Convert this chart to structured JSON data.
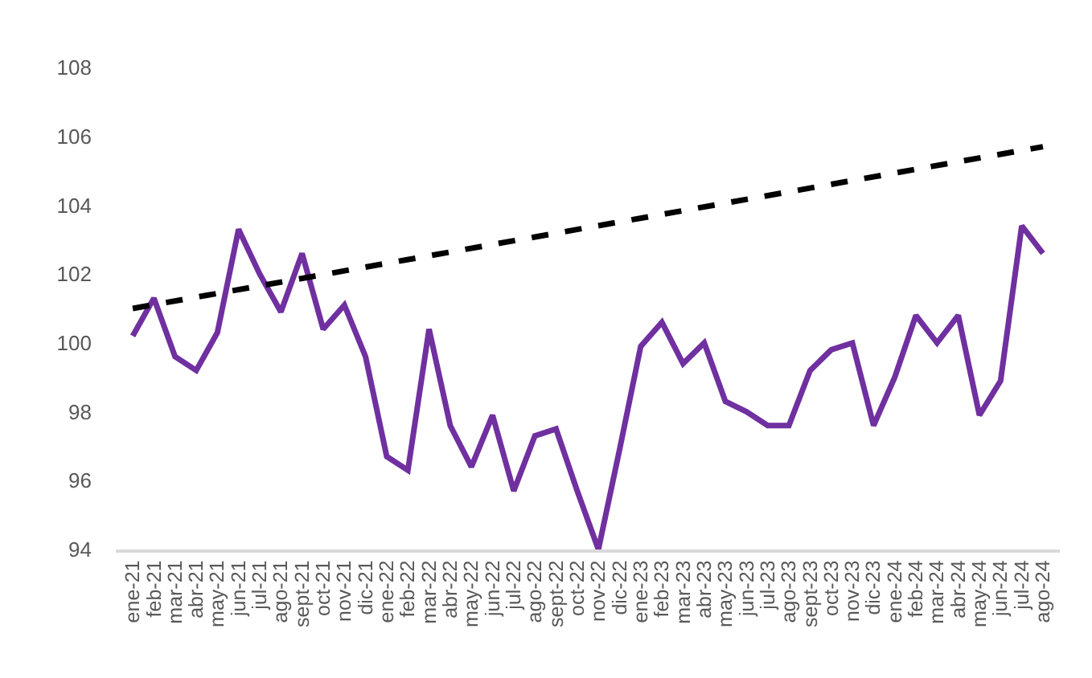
{
  "chart_data": {
    "type": "line",
    "categories": [
      "ene-21",
      "feb-21",
      "mar-21",
      "abr-21",
      "may-21",
      "jun-21",
      "jul-21",
      "ago-21",
      "sept-21",
      "oct-21",
      "nov-21",
      "dic-21",
      "ene-22",
      "feb-22",
      "mar-22",
      "abr-22",
      "may-22",
      "jun-22",
      "jul-22",
      "ago-22",
      "sept-22",
      "oct-22",
      "nov-22",
      "dic-22",
      "ene-23",
      "feb-23",
      "mar-23",
      "abr-23",
      "may-23",
      "jun-23",
      "jul-23",
      "ago-23",
      "sept-23",
      "oct-23",
      "nov-23",
      "dic-23",
      "ene-24",
      "feb-24",
      "mar-24",
      "abr-24",
      "may-24",
      "jun-24",
      "jul-24",
      "ago-24"
    ],
    "series": [
      {
        "color": "#7030a0",
        "line_style": "solid",
        "values": [
          100.2,
          101.3,
          99.6,
          99.2,
          100.3,
          103.3,
          102.0,
          100.9,
          102.6,
          100.4,
          101.1,
          99.6,
          96.7,
          96.3,
          100.4,
          97.6,
          96.4,
          97.9,
          95.7,
          97.3,
          97.5,
          95.7,
          94.0,
          96.9,
          99.9,
          100.6,
          99.4,
          100.0,
          98.3,
          98.0,
          97.6,
          97.6,
          99.2,
          99.8,
          100.0,
          97.6,
          99.0,
          100.8,
          100.0,
          100.8,
          97.9,
          98.9,
          103.4,
          102.6
        ]
      },
      {
        "type": "line",
        "color": "#000000",
        "line_style": "dashed",
        "x": [
          "ene-21",
          "ago-24"
        ],
        "values": [
          101.0,
          105.7
        ]
      }
    ],
    "ylim": [
      94,
      108
    ],
    "yticks": [
      94,
      96,
      98,
      100,
      102,
      104,
      106,
      108
    ],
    "marker": "none"
  }
}
